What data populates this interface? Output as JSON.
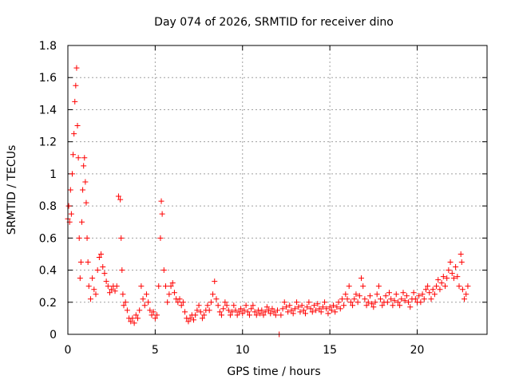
{
  "chart_data": {
    "type": "scatter",
    "title": "Day 074 of 2026, SRMTID for receiver dino",
    "xlabel": "GPS time / hours",
    "ylabel": "SRMTID / TECUs",
    "xlim": [
      0,
      24
    ],
    "ylim": [
      0,
      1.8
    ],
    "xticks": [
      0,
      5,
      10,
      15,
      20
    ],
    "xtick_labels": [
      "0",
      "5",
      "10",
      "15",
      "20"
    ],
    "yticks": [
      0,
      0.2,
      0.4,
      0.6,
      0.8,
      1.0,
      1.2,
      1.4,
      1.6,
      1.8
    ],
    "ytick_labels": [
      "0",
      "0.2",
      "0.4",
      "0.6",
      "0.8",
      "1",
      "1.2",
      "1.4",
      "1.6",
      "1.8"
    ],
    "grid": true,
    "marker": "+",
    "color": "#ff0000",
    "series": [
      {
        "name": "SRMTID",
        "points": [
          [
            0.0,
            0.72
          ],
          [
            0.05,
            0.8
          ],
          [
            0.1,
            0.7
          ],
          [
            0.15,
            0.9
          ],
          [
            0.2,
            0.75
          ],
          [
            0.25,
            1.0
          ],
          [
            0.3,
            1.12
          ],
          [
            0.35,
            1.25
          ],
          [
            0.4,
            1.45
          ],
          [
            0.45,
            1.55
          ],
          [
            0.5,
            1.66
          ],
          [
            0.55,
            1.3
          ],
          [
            0.6,
            1.1
          ],
          [
            0.65,
            0.6
          ],
          [
            0.7,
            0.35
          ],
          [
            0.75,
            0.45
          ],
          [
            0.8,
            0.7
          ],
          [
            0.85,
            0.9
          ],
          [
            0.9,
            1.05
          ],
          [
            0.95,
            1.1
          ],
          [
            1.0,
            0.95
          ],
          [
            1.05,
            0.82
          ],
          [
            1.1,
            0.6
          ],
          [
            1.15,
            0.45
          ],
          [
            1.2,
            0.3
          ],
          [
            1.3,
            0.22
          ],
          [
            1.4,
            0.35
          ],
          [
            1.5,
            0.28
          ],
          [
            1.6,
            0.25
          ],
          [
            1.7,
            0.4
          ],
          [
            1.8,
            0.48
          ],
          [
            1.9,
            0.5
          ],
          [
            2.0,
            0.42
          ],
          [
            2.1,
            0.38
          ],
          [
            2.2,
            0.33
          ],
          [
            2.3,
            0.3
          ],
          [
            2.4,
            0.26
          ],
          [
            2.5,
            0.28
          ],
          [
            2.6,
            0.3
          ],
          [
            2.7,
            0.27
          ],
          [
            2.8,
            0.3
          ],
          [
            2.9,
            0.86
          ],
          [
            3.0,
            0.84
          ],
          [
            3.05,
            0.6
          ],
          [
            3.1,
            0.4
          ],
          [
            3.15,
            0.25
          ],
          [
            3.2,
            0.18
          ],
          [
            3.3,
            0.2
          ],
          [
            3.4,
            0.15
          ],
          [
            3.5,
            0.1
          ],
          [
            3.6,
            0.08
          ],
          [
            3.7,
            0.1
          ],
          [
            3.8,
            0.07
          ],
          [
            3.9,
            0.12
          ],
          [
            4.0,
            0.1
          ],
          [
            4.1,
            0.15
          ],
          [
            4.2,
            0.3
          ],
          [
            4.3,
            0.22
          ],
          [
            4.4,
            0.18
          ],
          [
            4.5,
            0.25
          ],
          [
            4.6,
            0.2
          ],
          [
            4.7,
            0.15
          ],
          [
            4.8,
            0.12
          ],
          [
            4.9,
            0.14
          ],
          [
            5.0,
            0.1
          ],
          [
            5.1,
            0.12
          ],
          [
            5.2,
            0.3
          ],
          [
            5.3,
            0.6
          ],
          [
            5.35,
            0.83
          ],
          [
            5.4,
            0.75
          ],
          [
            5.5,
            0.4
          ],
          [
            5.6,
            0.3
          ],
          [
            5.7,
            0.2
          ],
          [
            5.8,
            0.25
          ],
          [
            5.9,
            0.3
          ],
          [
            6.0,
            0.32
          ],
          [
            6.1,
            0.26
          ],
          [
            6.2,
            0.22
          ],
          [
            6.3,
            0.2
          ],
          [
            6.4,
            0.22
          ],
          [
            6.5,
            0.18
          ],
          [
            6.6,
            0.2
          ],
          [
            6.7,
            0.14
          ],
          [
            6.8,
            0.1
          ],
          [
            6.9,
            0.08
          ],
          [
            7.0,
            0.1
          ],
          [
            7.1,
            0.12
          ],
          [
            7.2,
            0.09
          ],
          [
            7.3,
            0.12
          ],
          [
            7.4,
            0.15
          ],
          [
            7.5,
            0.18
          ],
          [
            7.6,
            0.14
          ],
          [
            7.7,
            0.1
          ],
          [
            7.8,
            0.12
          ],
          [
            7.9,
            0.15
          ],
          [
            8.0,
            0.18
          ],
          [
            8.1,
            0.15
          ],
          [
            8.2,
            0.2
          ],
          [
            8.3,
            0.25
          ],
          [
            8.4,
            0.33
          ],
          [
            8.5,
            0.22
          ],
          [
            8.6,
            0.18
          ],
          [
            8.7,
            0.14
          ],
          [
            8.8,
            0.12
          ],
          [
            8.9,
            0.16
          ],
          [
            9.0,
            0.2
          ],
          [
            9.1,
            0.18
          ],
          [
            9.2,
            0.15
          ],
          [
            9.3,
            0.12
          ],
          [
            9.4,
            0.14
          ],
          [
            9.5,
            0.18
          ],
          [
            9.6,
            0.15
          ],
          [
            9.7,
            0.12
          ],
          [
            9.8,
            0.14
          ],
          [
            9.9,
            0.16
          ],
          [
            10.0,
            0.13
          ],
          [
            10.1,
            0.15
          ],
          [
            10.2,
            0.18
          ],
          [
            10.3,
            0.14
          ],
          [
            10.4,
            0.12
          ],
          [
            10.5,
            0.16
          ],
          [
            10.6,
            0.18
          ],
          [
            10.7,
            0.14
          ],
          [
            10.8,
            0.12
          ],
          [
            10.9,
            0.15
          ],
          [
            11.0,
            0.13
          ],
          [
            11.1,
            0.15
          ],
          [
            11.2,
            0.12
          ],
          [
            11.3,
            0.14
          ],
          [
            11.4,
            0.17
          ],
          [
            11.5,
            0.15
          ],
          [
            11.6,
            0.13
          ],
          [
            11.7,
            0.16
          ],
          [
            11.8,
            0.14
          ],
          [
            11.9,
            0.12
          ],
          [
            12.0,
            0.15
          ],
          [
            12.1,
            0.0
          ],
          [
            12.2,
            0.12
          ],
          [
            12.3,
            0.16
          ],
          [
            12.4,
            0.2
          ],
          [
            12.5,
            0.17
          ],
          [
            12.6,
            0.14
          ],
          [
            12.7,
            0.18
          ],
          [
            12.8,
            0.15
          ],
          [
            12.9,
            0.13
          ],
          [
            13.0,
            0.16
          ],
          [
            13.1,
            0.2
          ],
          [
            13.2,
            0.17
          ],
          [
            13.3,
            0.14
          ],
          [
            13.4,
            0.18
          ],
          [
            13.5,
            0.15
          ],
          [
            13.6,
            0.13
          ],
          [
            13.7,
            0.17
          ],
          [
            13.8,
            0.2
          ],
          [
            13.9,
            0.16
          ],
          [
            14.0,
            0.14
          ],
          [
            14.1,
            0.18
          ],
          [
            14.2,
            0.15
          ],
          [
            14.3,
            0.19
          ],
          [
            14.4,
            0.16
          ],
          [
            14.5,
            0.14
          ],
          [
            14.6,
            0.17
          ],
          [
            14.7,
            0.2
          ],
          [
            14.8,
            0.16
          ],
          [
            14.9,
            0.13
          ],
          [
            15.0,
            0.17
          ],
          [
            15.1,
            0.15
          ],
          [
            15.2,
            0.18
          ],
          [
            15.3,
            0.14
          ],
          [
            15.4,
            0.17
          ],
          [
            15.5,
            0.2
          ],
          [
            15.6,
            0.16
          ],
          [
            15.7,
            0.22
          ],
          [
            15.8,
            0.18
          ],
          [
            15.9,
            0.25
          ],
          [
            16.0,
            0.22
          ],
          [
            16.1,
            0.3
          ],
          [
            16.2,
            0.2
          ],
          [
            16.3,
            0.18
          ],
          [
            16.4,
            0.22
          ],
          [
            16.5,
            0.25
          ],
          [
            16.6,
            0.2
          ],
          [
            16.7,
            0.24
          ],
          [
            16.8,
            0.35
          ],
          [
            16.9,
            0.3
          ],
          [
            17.0,
            0.22
          ],
          [
            17.1,
            0.18
          ],
          [
            17.2,
            0.2
          ],
          [
            17.3,
            0.24
          ],
          [
            17.4,
            0.19
          ],
          [
            17.5,
            0.17
          ],
          [
            17.6,
            0.2
          ],
          [
            17.7,
            0.25
          ],
          [
            17.8,
            0.3
          ],
          [
            17.9,
            0.22
          ],
          [
            18.0,
            0.18
          ],
          [
            18.1,
            0.2
          ],
          [
            18.2,
            0.24
          ],
          [
            18.3,
            0.2
          ],
          [
            18.4,
            0.26
          ],
          [
            18.5,
            0.22
          ],
          [
            18.6,
            0.18
          ],
          [
            18.7,
            0.21
          ],
          [
            18.8,
            0.25
          ],
          [
            18.9,
            0.2
          ],
          [
            19.0,
            0.18
          ],
          [
            19.1,
            0.22
          ],
          [
            19.2,
            0.26
          ],
          [
            19.3,
            0.21
          ],
          [
            19.4,
            0.24
          ],
          [
            19.5,
            0.2
          ],
          [
            19.6,
            0.17
          ],
          [
            19.7,
            0.22
          ],
          [
            19.8,
            0.26
          ],
          [
            19.9,
            0.22
          ],
          [
            20.0,
            0.2
          ],
          [
            20.1,
            0.24
          ],
          [
            20.2,
            0.2
          ],
          [
            20.3,
            0.25
          ],
          [
            20.4,
            0.22
          ],
          [
            20.5,
            0.28
          ],
          [
            20.6,
            0.3
          ],
          [
            20.7,
            0.26
          ],
          [
            20.8,
            0.22
          ],
          [
            20.9,
            0.28
          ],
          [
            21.0,
            0.25
          ],
          [
            21.1,
            0.3
          ],
          [
            21.2,
            0.34
          ],
          [
            21.3,
            0.28
          ],
          [
            21.4,
            0.32
          ],
          [
            21.5,
            0.36
          ],
          [
            21.6,
            0.3
          ],
          [
            21.7,
            0.35
          ],
          [
            21.8,
            0.4
          ],
          [
            21.9,
            0.45
          ],
          [
            22.0,
            0.38
          ],
          [
            22.1,
            0.35
          ],
          [
            22.2,
            0.42
          ],
          [
            22.3,
            0.36
          ],
          [
            22.4,
            0.3
          ],
          [
            22.5,
            0.5
          ],
          [
            22.55,
            0.45
          ],
          [
            22.6,
            0.28
          ],
          [
            22.7,
            0.22
          ],
          [
            22.8,
            0.25
          ],
          [
            22.9,
            0.3
          ]
        ]
      }
    ]
  }
}
